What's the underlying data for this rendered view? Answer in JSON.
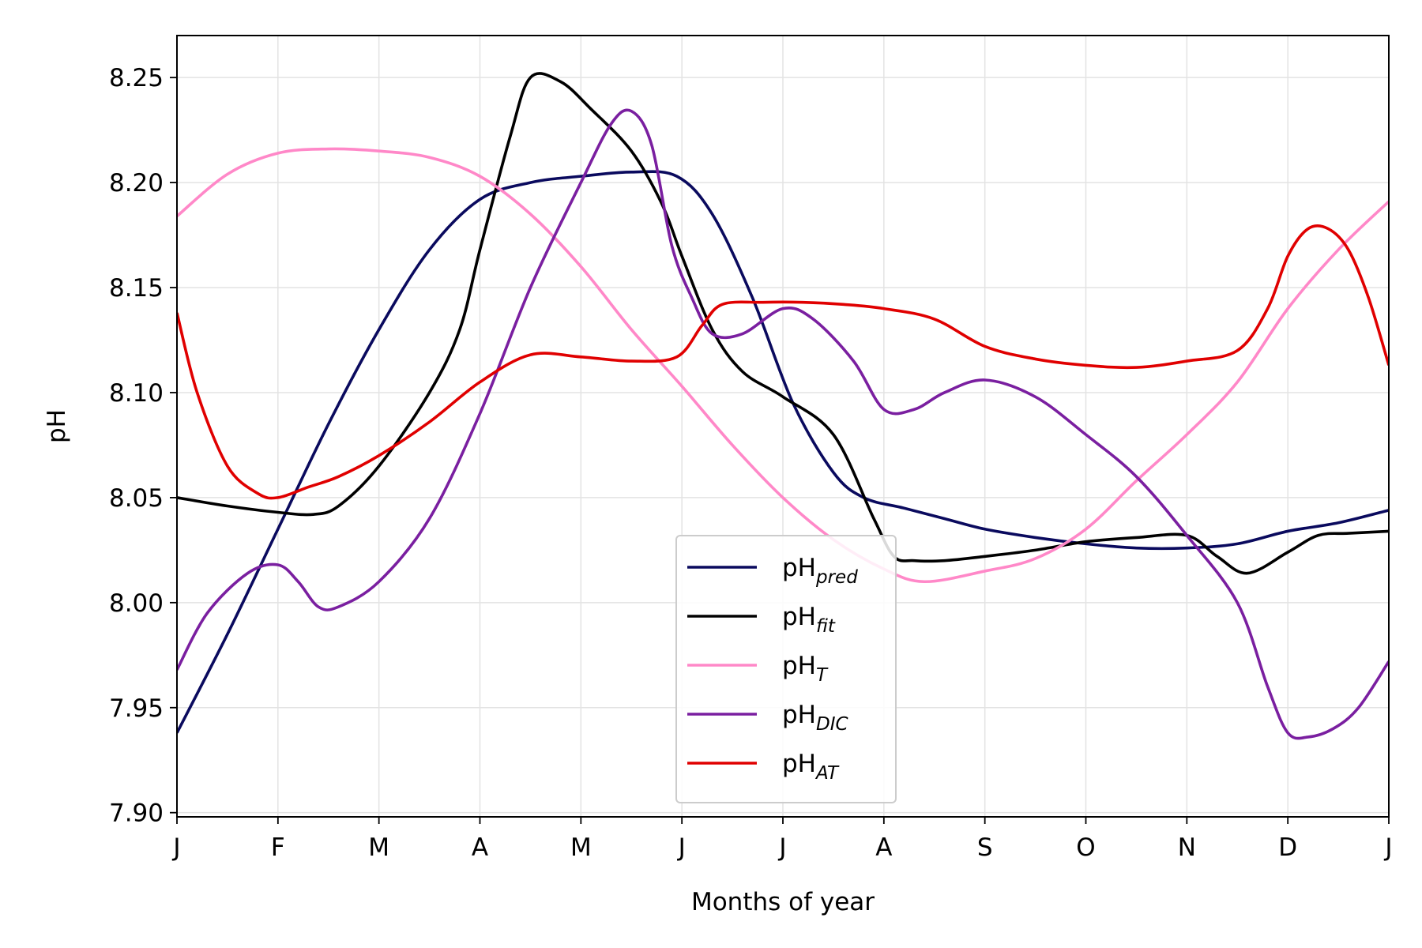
{
  "chart_data": {
    "type": "line",
    "xlabel": "Months of year",
    "ylabel": "pH",
    "xlim": [
      0,
      12
    ],
    "ylim": [
      7.898,
      8.27
    ],
    "x_ticks": [
      0,
      1,
      2,
      3,
      4,
      5,
      6,
      7,
      8,
      9,
      10,
      11,
      12
    ],
    "x_tick_labels": [
      "J",
      "F",
      "M",
      "A",
      "M",
      "J",
      "J",
      "A",
      "S",
      "O",
      "N",
      "D",
      "J"
    ],
    "y_ticks": [
      7.9,
      7.95,
      8.0,
      8.05,
      8.1,
      8.15,
      8.2,
      8.25
    ],
    "y_tick_labels": [
      "7.90",
      "7.95",
      "8.00",
      "8.05",
      "8.10",
      "8.15",
      "8.20",
      "8.25"
    ],
    "grid": true,
    "legend_position": "bottom-center",
    "series": [
      {
        "name": "pH",
        "subscript": "pred",
        "color": "#0a0a5e",
        "x": [
          0,
          0.5,
          1,
          1.5,
          2,
          2.5,
          3,
          3.5,
          4,
          4.5,
          4.95,
          5.3,
          5.7,
          6.1,
          6.5,
          6.8,
          7.2,
          7.6,
          8,
          8.5,
          9,
          9.5,
          10,
          10.5,
          11,
          11.5,
          12
        ],
        "y": [
          7.938,
          7.985,
          8.035,
          8.085,
          8.13,
          8.168,
          8.192,
          8.2,
          8.203,
          8.205,
          8.203,
          8.185,
          8.145,
          8.095,
          8.062,
          8.05,
          8.045,
          8.04,
          8.035,
          8.031,
          8.028,
          8.026,
          8.026,
          8.028,
          8.034,
          8.038,
          8.044
        ]
      },
      {
        "name": "pH",
        "subscript": "fit",
        "color": "#000000",
        "x": [
          0,
          0.5,
          1,
          1.35,
          1.6,
          2,
          2.5,
          2.8,
          3,
          3.3,
          3.5,
          3.8,
          4.1,
          4.5,
          4.8,
          5.0,
          5.3,
          5.6,
          6,
          6.5,
          6.9,
          7.1,
          7.3,
          7.6,
          8,
          8.5,
          9,
          9.5,
          10,
          10.3,
          10.6,
          11,
          11.3,
          11.6,
          12
        ],
        "y": [
          8.05,
          8.046,
          8.043,
          8.042,
          8.046,
          8.065,
          8.1,
          8.13,
          8.168,
          8.222,
          8.25,
          8.248,
          8.235,
          8.215,
          8.19,
          8.165,
          8.13,
          8.11,
          8.098,
          8.08,
          8.04,
          8.022,
          8.02,
          8.02,
          8.022,
          8.025,
          8.029,
          8.031,
          8.032,
          8.022,
          8.014,
          8.024,
          8.032,
          8.033,
          8.034
        ]
      },
      {
        "name": "pH",
        "subscript": "T",
        "color": "#ff88c8",
        "x": [
          0,
          0.5,
          1,
          1.5,
          2,
          2.5,
          3,
          3.5,
          4,
          4.5,
          5,
          5.5,
          6,
          6.5,
          7,
          7.4,
          8,
          8.5,
          9,
          9.5,
          10,
          10.5,
          11,
          11.5,
          12
        ],
        "y": [
          8.184,
          8.204,
          8.214,
          8.216,
          8.215,
          8.212,
          8.203,
          8.185,
          8.16,
          8.13,
          8.103,
          8.075,
          8.05,
          8.03,
          8.016,
          8.01,
          8.015,
          8.021,
          8.035,
          8.058,
          8.08,
          8.105,
          8.14,
          8.168,
          8.191
        ]
      },
      {
        "name": "pH",
        "subscript": "DIC",
        "color": "#7a1fa0",
        "x": [
          0,
          0.3,
          0.7,
          1,
          1.2,
          1.4,
          1.6,
          2,
          2.5,
          3,
          3.5,
          4,
          4.3,
          4.5,
          4.7,
          4.9,
          5.1,
          5.3,
          5.6,
          6,
          6.3,
          6.7,
          7,
          7.3,
          7.6,
          8,
          8.5,
          9,
          9.5,
          10,
          10.5,
          10.8,
          11.0,
          11.2,
          11.45,
          11.7,
          12
        ],
        "y": [
          7.968,
          7.995,
          8.014,
          8.018,
          8.01,
          7.998,
          7.998,
          8.01,
          8.04,
          8.09,
          8.15,
          8.2,
          8.228,
          8.234,
          8.218,
          8.17,
          8.145,
          8.128,
          8.128,
          8.14,
          8.135,
          8.115,
          8.092,
          8.092,
          8.1,
          8.106,
          8.098,
          8.08,
          8.06,
          8.032,
          8.0,
          7.96,
          7.938,
          7.936,
          7.94,
          7.95,
          7.972
        ]
      },
      {
        "name": "pH",
        "subscript": "AT",
        "color": "#e00000",
        "x": [
          0,
          0.2,
          0.5,
          0.8,
          1,
          1.3,
          1.6,
          2,
          2.5,
          3,
          3.5,
          4,
          4.5,
          4.95,
          5.2,
          5.4,
          5.8,
          6.2,
          6.6,
          7,
          7.5,
          8,
          8.5,
          9,
          9.5,
          10,
          10.5,
          10.8,
          11,
          11.2,
          11.4,
          11.6,
          11.8,
          12
        ],
        "y": [
          8.138,
          8.1,
          8.065,
          8.052,
          8.05,
          8.055,
          8.06,
          8.07,
          8.086,
          8.105,
          8.118,
          8.117,
          8.115,
          8.117,
          8.132,
          8.142,
          8.143,
          8.143,
          8.142,
          8.14,
          8.135,
          8.122,
          8.116,
          8.113,
          8.112,
          8.115,
          8.12,
          8.14,
          8.165,
          8.178,
          8.178,
          8.168,
          8.145,
          8.113
        ]
      }
    ]
  }
}
